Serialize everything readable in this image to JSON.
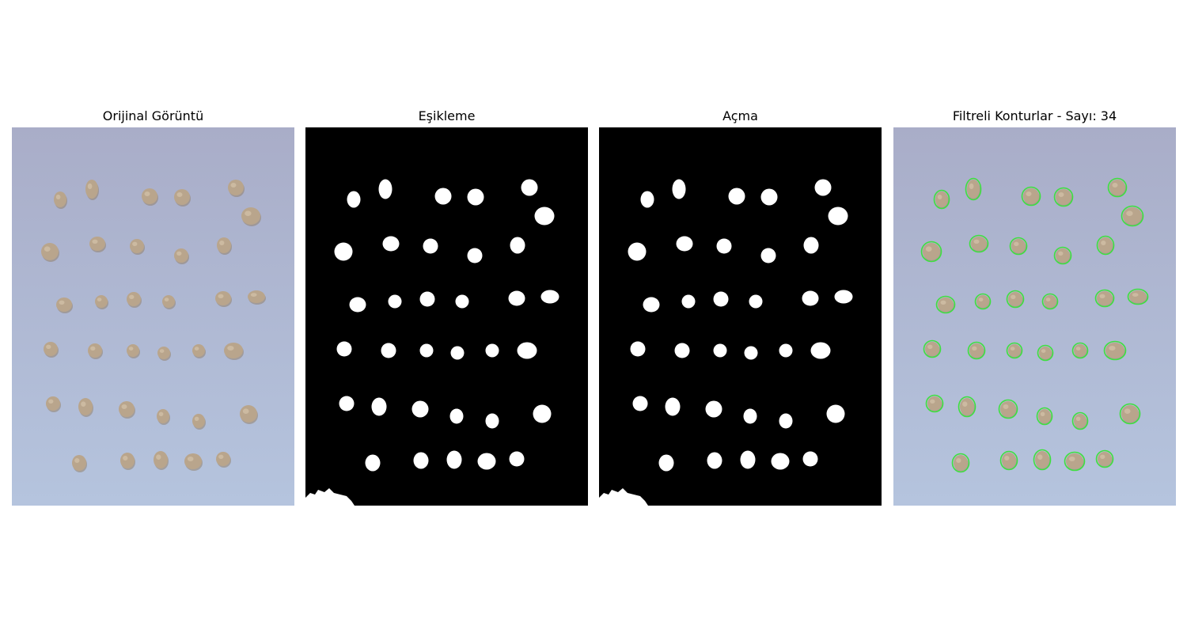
{
  "panels": [
    {
      "title": "Orijinal Görüntü"
    },
    {
      "title": "Eşikleme"
    },
    {
      "title": "Açma"
    },
    {
      "title": "Filtreli Konturlar - Sayı: 34"
    }
  ],
  "colors": {
    "photo_bg_top": "#a9adc8",
    "photo_bg_bottom": "#b5c4de",
    "chickpea": "#b9a58c",
    "chickpea_shadow": "#8f7b62",
    "mask_bg": "#000000",
    "mask_fg": "#ffffff",
    "contour": "#3ee03e"
  },
  "contour_count": 34
}
